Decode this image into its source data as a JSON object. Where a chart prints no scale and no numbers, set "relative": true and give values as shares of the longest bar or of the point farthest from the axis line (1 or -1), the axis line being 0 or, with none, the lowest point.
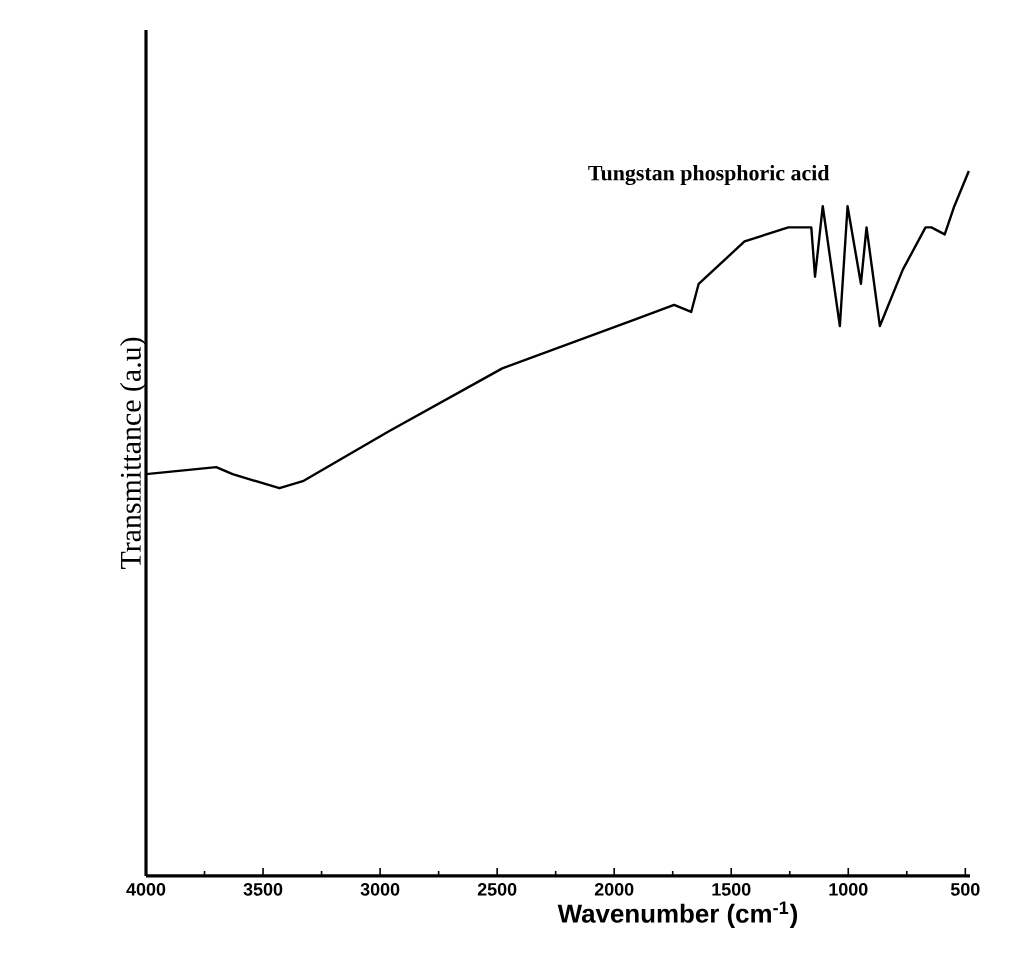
{
  "chart_data": {
    "type": "line",
    "relative": true,
    "xlabel": "Wavenumber (cm$^{-1}$)",
    "ylabel": "Transmittance (a.u)",
    "xlim": [
      4000,
      480
    ],
    "xticks": [
      4000,
      3500,
      3000,
      2500,
      2000,
      1500,
      1000,
      500
    ],
    "x": [
      4000,
      3700,
      3630,
      3430,
      3330,
      2966,
      2478,
      1907,
      1744,
      1671,
      1639,
      1443,
      1256,
      1158,
      1142,
      1109,
      1036,
      1003,
      946,
      922,
      865,
      767,
      670,
      645,
      588,
      547,
      485
    ],
    "series": [
      {
        "name": "Tungstan phosphoric acid",
        "color": "#000000",
        "values": [
          0.57,
          0.58,
          0.57,
          0.55,
          0.56,
          0.63,
          0.72,
          0.79,
          0.81,
          0.8,
          0.84,
          0.9,
          0.92,
          0.92,
          0.85,
          0.95,
          0.78,
          0.95,
          0.84,
          0.92,
          0.78,
          0.86,
          0.92,
          0.92,
          0.91,
          0.95,
          1.0
        ]
      }
    ],
    "grid": false,
    "marker": "none",
    "line_style": "solid"
  }
}
